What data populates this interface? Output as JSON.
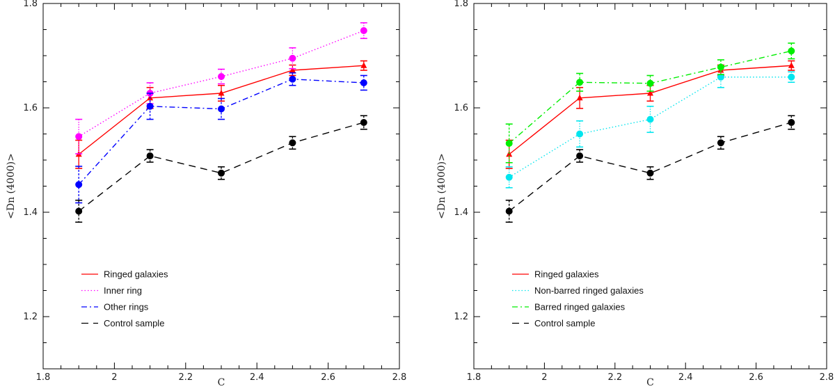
{
  "chart_data": [
    {
      "type": "line",
      "xlabel": "C",
      "ylabel": "<Dn (4000)>",
      "xlim": [
        1.8,
        2.8
      ],
      "ylim": [
        1.1,
        1.8
      ],
      "xticks": [
        1.8,
        2,
        2.2,
        2.4,
        2.6,
        2.8
      ],
      "xtick_labels": [
        "1.8",
        "2",
        "2.2",
        "2.4",
        "2.6",
        "2.8"
      ],
      "yticks": [
        1.2,
        1.4,
        1.6,
        1.8
      ],
      "ytick_labels": [
        "1.2",
        "1.4",
        "1.6",
        "1.8"
      ],
      "x_minor_step": 0.05,
      "y_minor_step": 0.05,
      "x": [
        1.9,
        2.1,
        2.3,
        2.5,
        2.7
      ],
      "series": [
        {
          "name": "Ringed galaxies",
          "color": "#ff0000",
          "dash": "solid",
          "marker": "triangle",
          "values": [
            1.511,
            1.619,
            1.628,
            1.672,
            1.681
          ],
          "errors": [
            0.027,
            0.02,
            0.015,
            0.01,
            0.009
          ]
        },
        {
          "name": "Inner ring",
          "color": "#ff00ff",
          "dash": "dotted",
          "marker": "circle",
          "values": [
            1.545,
            1.628,
            1.66,
            1.695,
            1.748
          ],
          "errors": [
            0.033,
            0.02,
            0.014,
            0.02,
            0.015
          ]
        },
        {
          "name": "Other rings",
          "color": "#0000ff",
          "dash": "dashdot",
          "marker": "circle",
          "values": [
            1.453,
            1.603,
            1.598,
            1.655,
            1.648
          ],
          "errors": [
            0.035,
            0.025,
            0.02,
            0.012,
            0.014
          ]
        },
        {
          "name": "Control sample",
          "color": "#000000",
          "dash": "dashed",
          "marker": "circle",
          "values": [
            1.402,
            1.508,
            1.475,
            1.533,
            1.572
          ],
          "errors": [
            0.021,
            0.012,
            0.012,
            0.012,
            0.013
          ]
        }
      ],
      "legend_position": "bottom-left"
    },
    {
      "type": "line",
      "xlabel": "C",
      "ylabel": "<Dn (4000)>",
      "xlim": [
        1.8,
        2.8
      ],
      "ylim": [
        1.1,
        1.8
      ],
      "xticks": [
        1.8,
        2,
        2.2,
        2.4,
        2.6,
        2.8
      ],
      "xtick_labels": [
        "1.8",
        "2",
        "2.2",
        "2.4",
        "2.6",
        "2.8"
      ],
      "yticks": [
        1.2,
        1.4,
        1.6,
        1.8
      ],
      "ytick_labels": [
        "1.2",
        "1.4",
        "1.6",
        "1.8"
      ],
      "x_minor_step": 0.05,
      "y_minor_step": 0.05,
      "x": [
        1.9,
        2.1,
        2.3,
        2.5,
        2.7
      ],
      "series": [
        {
          "name": "Ringed galaxies",
          "color": "#ff0000",
          "dash": "solid",
          "marker": "triangle",
          "values": [
            1.511,
            1.619,
            1.628,
            1.672,
            1.681
          ],
          "errors": [
            0.027,
            0.02,
            0.015,
            0.01,
            0.009
          ]
        },
        {
          "name": "Non-barred ringed galaxies",
          "color": "#00e5ee",
          "dash": "dotted",
          "marker": "circle",
          "values": [
            1.467,
            1.55,
            1.578,
            1.659,
            1.659
          ],
          "errors": [
            0.02,
            0.025,
            0.025,
            0.02,
            0.01
          ]
        },
        {
          "name": "Barred ringed galaxies",
          "color": "#00ee00",
          "dash": "dashdot",
          "marker": "circle",
          "values": [
            1.532,
            1.649,
            1.647,
            1.678,
            1.709
          ],
          "errors": [
            0.037,
            0.017,
            0.015,
            0.014,
            0.015
          ]
        },
        {
          "name": "Control sample",
          "color": "#000000",
          "dash": "dashed",
          "marker": "circle",
          "values": [
            1.402,
            1.508,
            1.475,
            1.533,
            1.572
          ],
          "errors": [
            0.021,
            0.012,
            0.012,
            0.012,
            0.013
          ]
        }
      ],
      "legend_position": "bottom-left"
    }
  ]
}
